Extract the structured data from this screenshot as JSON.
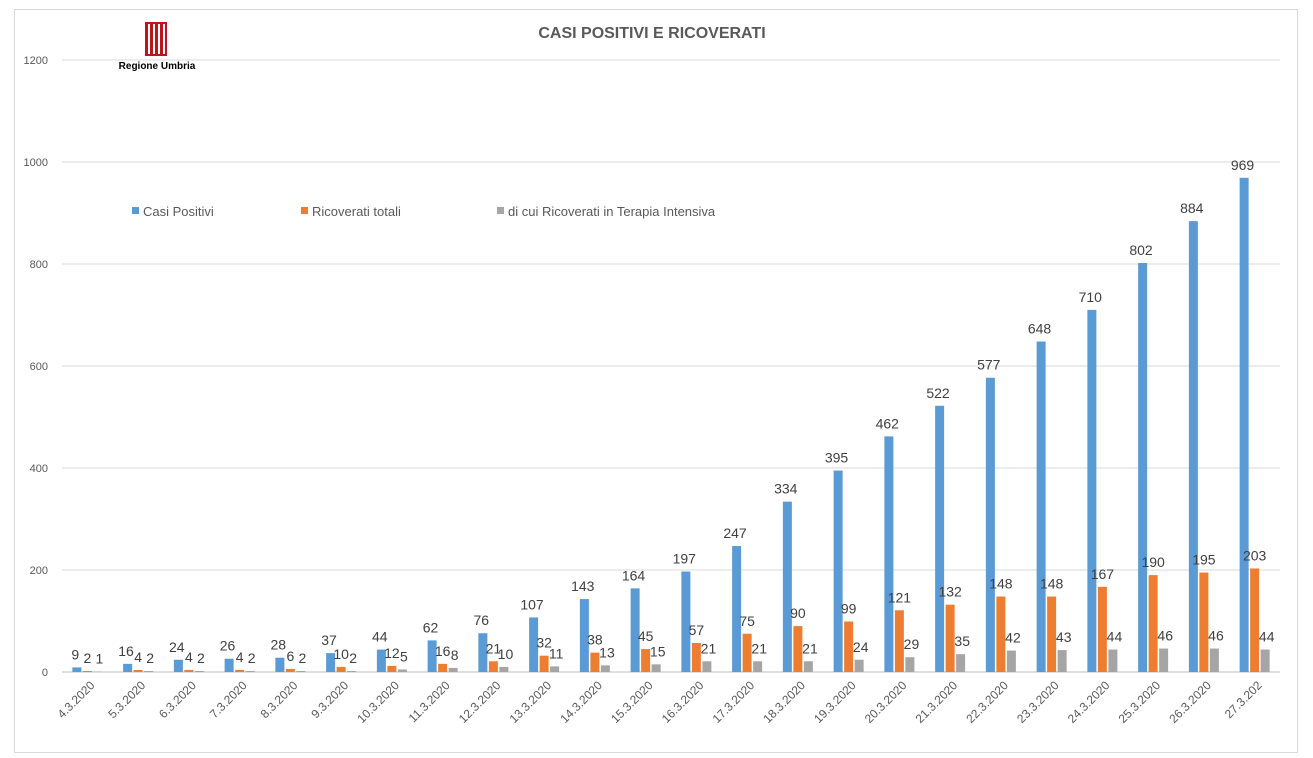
{
  "logo": {
    "text": "Regione Umbria",
    "color": "#c0141b"
  },
  "chart_data": {
    "type": "bar",
    "title": "CASI POSITIVI E RICOVERATI",
    "xlabel": "",
    "ylabel": "",
    "ylim": [
      0,
      1200
    ],
    "yticks": [
      0,
      200,
      400,
      600,
      800,
      1000,
      1200
    ],
    "grid": true,
    "legend": "top-left",
    "categories": [
      "4.3.2020",
      "5.3.2020",
      "6.3.2020",
      "7.3.2020",
      "8.3.2020",
      "9.3.2020",
      "10.3.2020",
      "11.3.2020",
      "12.3.2020",
      "13.3.2020",
      "14.3.2020",
      "15.3.2020",
      "16.3.2020",
      "17.3.2020",
      "18.3.2020",
      "19.3.2020",
      "20.3.2020",
      "21.3.2020",
      "22.3.2020",
      "23.3.2020",
      "24.3.2020",
      "25.3.2020",
      "26.3.2020",
      "27.3.202"
    ],
    "series": [
      {
        "name": "Casi Positivi",
        "color": "#5b9bd5",
        "values": [
          9,
          16,
          24,
          26,
          28,
          37,
          44,
          62,
          76,
          107,
          143,
          164,
          197,
          247,
          334,
          395,
          462,
          522,
          577,
          648,
          710,
          802,
          884,
          969
        ]
      },
      {
        "name": "Ricoverati totali",
        "color": "#ed7d31",
        "values": [
          2,
          4,
          4,
          4,
          6,
          10,
          12,
          16,
          21,
          32,
          38,
          45,
          57,
          75,
          90,
          99,
          121,
          132,
          148,
          148,
          167,
          190,
          195,
          203
        ]
      },
      {
        "name": "di cui Ricoverati in Terapia Intensiva",
        "color": "#a5a5a5",
        "values": [
          1,
          2,
          2,
          2,
          2,
          2,
          5,
          8,
          10,
          11,
          13,
          15,
          21,
          21,
          21,
          24,
          29,
          35,
          42,
          43,
          44,
          46,
          46,
          44
        ]
      }
    ]
  }
}
